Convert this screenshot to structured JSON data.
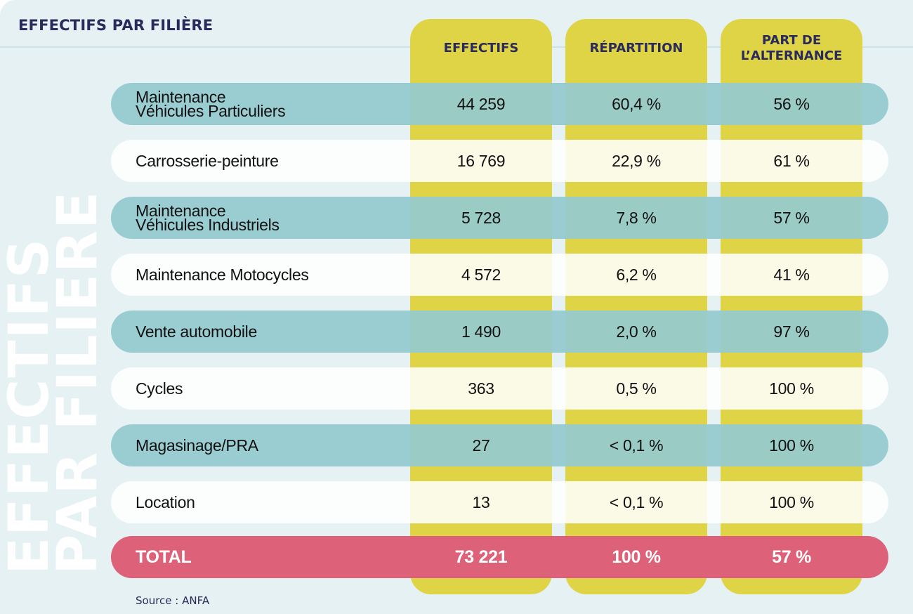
{
  "title": "EFFECTIFS PAR FILIÈRE",
  "watermark": {
    "line1": "EFFECTIFS",
    "line2": "PAR FILIERE"
  },
  "columns": [
    {
      "label": "EFFECTIFS"
    },
    {
      "label": "RÉPARTITION"
    },
    {
      "label_line1": "PART DE",
      "label_line2": "L’ALTERNANCE"
    }
  ],
  "rows": [
    {
      "label_line1": "Maintenance",
      "label_line2": "Véhicules Particuliers",
      "effectifs": "44 259",
      "repartition": "60,4 %",
      "alternance": "56 %",
      "style": "teal"
    },
    {
      "label": "Carrosserie-peinture",
      "effectifs": "16 769",
      "repartition": "22,9 %",
      "alternance": "61 %",
      "style": "white"
    },
    {
      "label_line1": "Maintenance",
      "label_line2": "Véhicules Industriels",
      "effectifs": "5 728",
      "repartition": "7,8 %",
      "alternance": "57 %",
      "style": "teal"
    },
    {
      "label": "Maintenance Motocycles",
      "effectifs": "4 572",
      "repartition": "6,2 %",
      "alternance": "41 %",
      "style": "white"
    },
    {
      "label": "Vente automobile",
      "effectifs": "1 490",
      "repartition": "2,0 %",
      "alternance": "97 %",
      "style": "teal"
    },
    {
      "label": "Cycles",
      "effectifs": "363",
      "repartition": "0,5 %",
      "alternance": "100 %",
      "style": "white"
    },
    {
      "label": "Magasinage/PRA",
      "effectifs": "27",
      "repartition": "< 0,1 %",
      "alternance": "100 %",
      "style": "teal"
    },
    {
      "label": "Location",
      "effectifs": "13",
      "repartition": "< 0,1 %",
      "alternance": "100 %",
      "style": "white"
    }
  ],
  "total": {
    "label": "TOTAL",
    "effectifs": "73 221",
    "repartition": "100 %",
    "alternance": "57 %"
  },
  "source": "Source : ANFA",
  "colors": {
    "background": "#e5f1f3",
    "navy": "#2a2b5c",
    "yellow": "#ded445",
    "teal": "#95cacf",
    "pink": "#dc6179"
  }
}
